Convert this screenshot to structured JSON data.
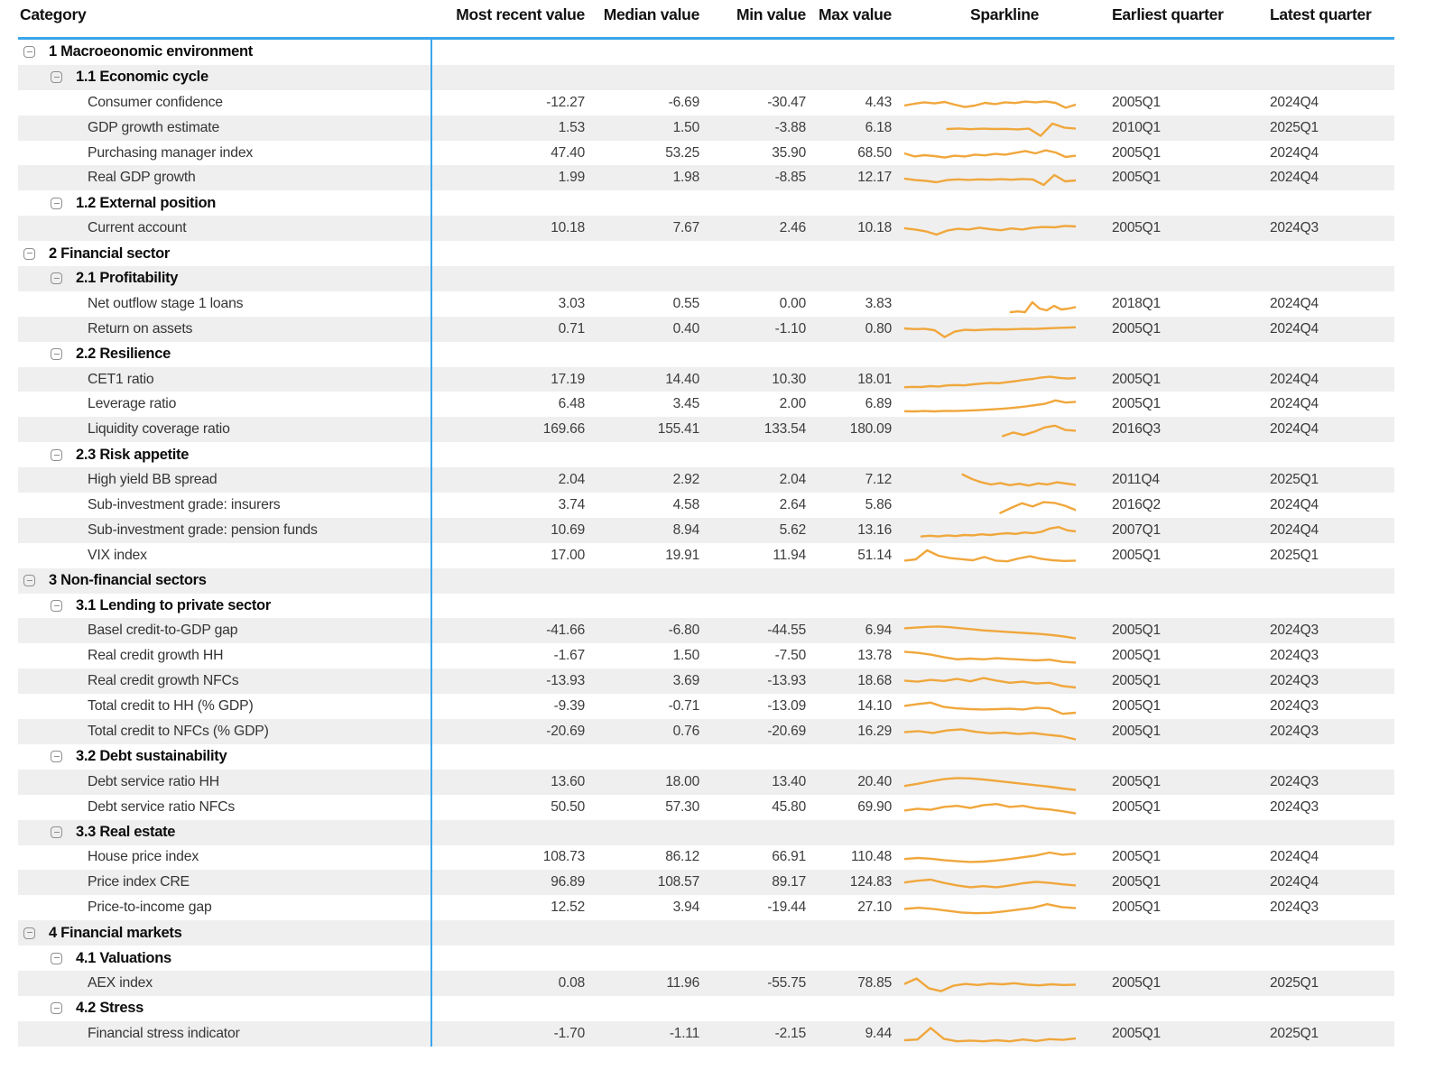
{
  "colors": {
    "accent_blue": "#3aa5ec",
    "sparkline": "#f0a73c",
    "stripe": "#efefef",
    "icon_gray": "#8f8f8f"
  },
  "chart_data": {
    "type": "table",
    "columns": [
      "Category",
      "Most recent value",
      "Median value",
      "Min value",
      "Max value",
      "Sparkline",
      "Earliest quarter",
      "Latest quarter"
    ],
    "rows": [
      {
        "type": "g1",
        "label": "1 Macroeonomic environment"
      },
      {
        "type": "g2",
        "label": "1.1 Economic cycle"
      },
      {
        "type": "leaf",
        "label": "Consumer confidence",
        "recent": "-12.27",
        "median": "-6.69",
        "min": "-30.47",
        "max": "4.43",
        "earliest": "2005Q1",
        "latest": "2024Q4",
        "spark": {
          "start": 0,
          "y": [
            40,
            50,
            58,
            52,
            60,
            45,
            32,
            40,
            55,
            48,
            58,
            54,
            62,
            58,
            63,
            55,
            28,
            45
          ]
        }
      },
      {
        "type": "leaf",
        "label": "GDP growth estimate",
        "recent": "1.53",
        "median": "1.50",
        "min": "-3.88",
        "max": "6.18",
        "earliest": "2010Q1",
        "latest": "2025Q1",
        "spark": {
          "start": 0.25,
          "y": [
            50,
            53,
            49,
            52,
            50,
            51,
            48,
            52,
            12,
            80,
            58,
            52
          ]
        }
      },
      {
        "type": "leaf",
        "label": "Purchasing manager index",
        "recent": "47.40",
        "median": "53.25",
        "min": "35.90",
        "max": "68.50",
        "earliest": "2005Q1",
        "latest": "2024Q4",
        "spark": {
          "start": 0,
          "y": [
            55,
            38,
            45,
            40,
            32,
            42,
            38,
            48,
            44,
            52,
            48,
            58,
            68,
            55,
            72,
            60,
            35,
            42
          ]
        }
      },
      {
        "type": "leaf",
        "label": "Real GDP growth",
        "recent": "1.99",
        "median": "1.98",
        "min": "-8.85",
        "max": "12.17",
        "earliest": "2005Q1",
        "latest": "2024Q4",
        "spark": {
          "start": 0,
          "y": [
            50,
            42,
            38,
            30,
            42,
            46,
            43,
            46,
            44,
            47,
            44,
            48,
            45,
            15,
            70,
            35,
            40
          ]
        }
      },
      {
        "type": "g2",
        "label": "1.2 External position"
      },
      {
        "type": "leaf",
        "label": "Current account",
        "recent": "10.18",
        "median": "7.67",
        "min": "2.46",
        "max": "10.18",
        "earliest": "2005Q1",
        "latest": "2024Q3",
        "spark": {
          "start": 0,
          "y": [
            55,
            48,
            38,
            20,
            42,
            52,
            48,
            58,
            50,
            44,
            54,
            48,
            58,
            62,
            60,
            68,
            65
          ]
        }
      },
      {
        "type": "g1",
        "label": "2 Financial sector"
      },
      {
        "type": "g2",
        "label": "2.1 Profitability"
      },
      {
        "type": "leaf",
        "label": "Net outflow stage 1 loans",
        "recent": "3.03",
        "median": "0.55",
        "min": "0.00",
        "max": "3.83",
        "earliest": "2018Q1",
        "latest": "2024Q4",
        "spark": {
          "start": 0.62,
          "y": [
            10,
            14,
            10,
            65,
            30,
            20,
            45,
            25,
            30,
            38
          ]
        }
      },
      {
        "type": "leaf",
        "label": "Return on assets",
        "recent": "0.71",
        "median": "0.40",
        "min": "-1.10",
        "max": "0.80",
        "earliest": "2005Q1",
        "latest": "2024Q4",
        "spark": {
          "start": 0,
          "y": [
            60,
            56,
            58,
            50,
            12,
            42,
            52,
            50,
            53,
            55,
            54,
            56,
            58,
            57,
            60,
            62,
            64,
            66
          ]
        }
      },
      {
        "type": "g2",
        "label": "2.2 Resilience"
      },
      {
        "type": "leaf",
        "label": "CET1 ratio",
        "recent": "17.19",
        "median": "14.40",
        "min": "10.30",
        "max": "18.01",
        "earliest": "2005Q1",
        "latest": "2024Q4",
        "spark": {
          "start": 0,
          "y": [
            14,
            16,
            15,
            20,
            18,
            24,
            26,
            24,
            30,
            34,
            38,
            36,
            42,
            48,
            55,
            60,
            68,
            72,
            66,
            62,
            65
          ]
        }
      },
      {
        "type": "leaf",
        "label": "Leverage ratio",
        "recent": "6.48",
        "median": "3.45",
        "min": "2.00",
        "max": "6.89",
        "earliest": "2005Q1",
        "latest": "2024Q4",
        "spark": {
          "start": 0,
          "y": [
            16,
            15,
            17,
            15,
            18,
            17,
            19,
            21,
            24,
            27,
            31,
            36,
            42,
            50,
            58,
            76,
            64,
            68
          ]
        }
      },
      {
        "type": "leaf",
        "label": "Liquidity coverage ratio",
        "recent": "169.66",
        "median": "155.41",
        "min": "133.54",
        "max": "180.09",
        "earliest": "2016Q3",
        "latest": "2024Q4",
        "spark": {
          "start": 0.575,
          "y": [
            18,
            38,
            24,
            42,
            66,
            76,
            52,
            48
          ]
        }
      },
      {
        "type": "g2",
        "label": "2.3 Risk appetite"
      },
      {
        "type": "leaf",
        "label": "High yield BB spread",
        "recent": "2.04",
        "median": "2.92",
        "min": "2.04",
        "max": "7.12",
        "earliest": "2011Q4",
        "latest": "2025Q1",
        "spark": {
          "start": 0.34,
          "y": [
            85,
            60,
            42,
            30,
            38,
            26,
            34,
            24,
            36,
            30,
            42,
            35,
            28
          ]
        }
      },
      {
        "type": "leaf",
        "label": "Sub-investment grade: insurers",
        "recent": "3.74",
        "median": "4.58",
        "min": "2.64",
        "max": "5.86",
        "earliest": "2016Q2",
        "latest": "2024Q4",
        "spark": {
          "start": 0.56,
          "y": [
            12,
            40,
            66,
            48,
            72,
            68,
            52,
            28
          ]
        }
      },
      {
        "type": "leaf",
        "label": "Sub-investment grade: pension funds",
        "recent": "10.69",
        "median": "8.94",
        "min": "5.62",
        "max": "13.16",
        "earliest": "2007Q1",
        "latest": "2024Q4",
        "spark": {
          "start": 0.1,
          "y": [
            22,
            26,
            22,
            28,
            24,
            30,
            28,
            34,
            30,
            36,
            40,
            36,
            44,
            40,
            48,
            66,
            74,
            56,
            50
          ]
        }
      },
      {
        "type": "leaf",
        "label": "VIX index",
        "recent": "17.00",
        "median": "19.91",
        "min": "11.94",
        "max": "51.14",
        "earliest": "2005Q1",
        "latest": "2025Q1",
        "spark": {
          "start": 0,
          "y": [
            28,
            35,
            85,
            55,
            42,
            36,
            30,
            48,
            28,
            24,
            40,
            52,
            38,
            30,
            26,
            28
          ]
        }
      },
      {
        "type": "g1",
        "label": "3 Non-financial sectors"
      },
      {
        "type": "g2",
        "label": "3.1 Lending to private sector"
      },
      {
        "type": "leaf",
        "label": "Basel credit-to-GDP gap",
        "recent": "-41.66",
        "median": "-6.80",
        "min": "-44.55",
        "max": "6.94",
        "earliest": "2005Q1",
        "latest": "2024Q3",
        "spark": {
          "start": 0,
          "y": [
            68,
            72,
            76,
            78,
            74,
            68,
            62,
            56,
            52,
            48,
            44,
            40,
            36,
            30,
            22,
            12
          ]
        }
      },
      {
        "type": "leaf",
        "label": "Real credit growth HH",
        "recent": "-1.67",
        "median": "1.50",
        "min": "-7.50",
        "max": "13.78",
        "earliest": "2005Q1",
        "latest": "2024Q3",
        "spark": {
          "start": 0,
          "y": [
            78,
            72,
            62,
            48,
            36,
            40,
            36,
            42,
            38,
            34,
            30,
            34,
            22,
            18
          ]
        }
      },
      {
        "type": "leaf",
        "label": "Real credit growth NFCs",
        "recent": "-13.93",
        "median": "3.69",
        "min": "-13.93",
        "max": "18.68",
        "earliest": "2005Q1",
        "latest": "2024Q3",
        "spark": {
          "start": 0,
          "y": [
            58,
            52,
            62,
            56,
            68,
            54,
            72,
            58,
            46,
            52,
            42,
            46,
            28,
            20
          ]
        }
      },
      {
        "type": "leaf",
        "label": "Total credit to HH (% GDP)",
        "recent": "-9.39",
        "median": "-0.71",
        "min": "-13.09",
        "max": "14.10",
        "earliest": "2005Q1",
        "latest": "2024Q3",
        "spark": {
          "start": 0,
          "y": [
            58,
            68,
            76,
            52,
            44,
            40,
            38,
            40,
            42,
            38,
            48,
            44,
            14,
            20
          ]
        }
      },
      {
        "type": "leaf",
        "label": "Total credit to NFCs (% GDP)",
        "recent": "-20.69",
        "median": "0.76",
        "min": "-20.69",
        "max": "16.29",
        "earliest": "2005Q1",
        "latest": "2024Q3",
        "spark": {
          "start": 0,
          "y": [
            52,
            58,
            48,
            62,
            68,
            54,
            46,
            50,
            42,
            48,
            38,
            30,
            12
          ]
        }
      },
      {
        "type": "g2",
        "label": "3.2 Debt sustainability"
      },
      {
        "type": "leaf",
        "label": "Debt service ratio HH",
        "recent": "13.60",
        "median": "18.00",
        "min": "13.40",
        "max": "20.40",
        "earliest": "2005Q1",
        "latest": "2024Q3",
        "spark": {
          "start": 0,
          "y": [
            34,
            46,
            60,
            72,
            78,
            76,
            70,
            62,
            54,
            46,
            38,
            30,
            20,
            12
          ]
        }
      },
      {
        "type": "leaf",
        "label": "Debt service ratio NFCs",
        "recent": "50.50",
        "median": "57.30",
        "min": "45.80",
        "max": "69.90",
        "earliest": "2005Q1",
        "latest": "2024Q3",
        "spark": {
          "start": 0,
          "y": [
            38,
            48,
            42,
            58,
            64,
            52,
            68,
            74,
            58,
            64,
            50,
            44,
            34,
            22
          ]
        }
      },
      {
        "type": "g2",
        "label": "3.3 Real estate"
      },
      {
        "type": "leaf",
        "label": "House price index",
        "recent": "108.73",
        "median": "86.12",
        "min": "66.91",
        "max": "110.48",
        "earliest": "2005Q1",
        "latest": "2024Q4",
        "spark": {
          "start": 0,
          "y": [
            44,
            50,
            46,
            38,
            32,
            28,
            30,
            36,
            44,
            54,
            64,
            80,
            68,
            74
          ]
        }
      },
      {
        "type": "leaf",
        "label": "Price index CRE",
        "recent": "96.89",
        "median": "108.57",
        "min": "89.17",
        "max": "124.83",
        "earliest": "2005Q1",
        "latest": "2024Q4",
        "spark": {
          "start": 0,
          "y": [
            54,
            64,
            70,
            52,
            38,
            28,
            34,
            28,
            38,
            50,
            58,
            52,
            44,
            38
          ]
        }
      },
      {
        "type": "leaf",
        "label": "Price-to-income gap",
        "recent": "12.52",
        "median": "3.94",
        "min": "-19.44",
        "max": "27.10",
        "earliest": "2005Q1",
        "latest": "2024Q3",
        "spark": {
          "start": 0,
          "y": [
            48,
            54,
            48,
            38,
            28,
            24,
            26,
            34,
            44,
            54,
            74,
            58,
            52
          ]
        }
      },
      {
        "type": "g1",
        "label": "4 Financial markets"
      },
      {
        "type": "g2",
        "label": "4.1 Valuations"
      },
      {
        "type": "leaf",
        "label": "AEX index",
        "recent": "0.08",
        "median": "11.96",
        "min": "-55.75",
        "max": "78.85",
        "earliest": "2005Q1",
        "latest": "2025Q1",
        "spark": {
          "start": 0,
          "y": [
            52,
            82,
            28,
            12,
            42,
            52,
            46,
            54,
            50,
            56,
            48,
            44,
            50,
            46,
            48
          ]
        }
      },
      {
        "type": "g2",
        "label": "4.2 Stress"
      },
      {
        "type": "leaf",
        "label": "Financial stress indicator",
        "recent": "-1.70",
        "median": "-1.11",
        "min": "-2.15",
        "max": "9.44",
        "earliest": "2005Q1",
        "latest": "2025Q1",
        "spark": {
          "start": 0,
          "y": [
            20,
            24,
            88,
            28,
            14,
            18,
            14,
            20,
            14,
            24,
            16,
            26,
            22,
            30
          ]
        }
      }
    ]
  }
}
